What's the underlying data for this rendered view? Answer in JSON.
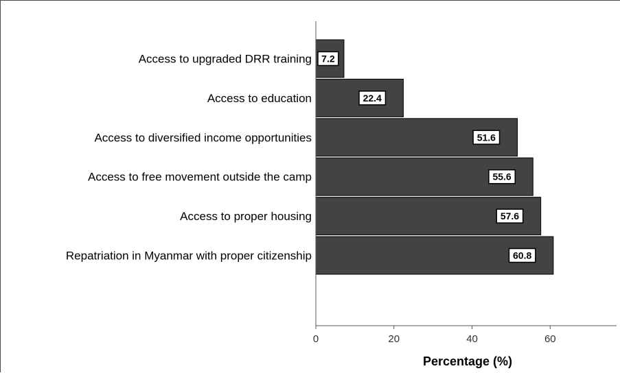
{
  "chart_data": {
    "type": "bar",
    "orientation": "horizontal",
    "categories": [
      "Access to upgraded DRR training",
      "Access to education",
      "Access to diversified income opportunities",
      "Access to free movement outside the camp",
      "Access to proper housing",
      "Repatriation in Myanmar with proper citizenship"
    ],
    "values": [
      7.2,
      22.4,
      51.6,
      55.6,
      57.6,
      60.8
    ],
    "data_labels": [
      "7.2",
      "22.4",
      "51.6",
      "55.6",
      "57.6",
      "60.8"
    ],
    "title": "",
    "xlabel": "Percentage (%)",
    "ylabel": "",
    "xlim": [
      0,
      77
    ],
    "xticks": [
      0,
      20,
      40,
      60
    ],
    "xtick_labels": [
      "0",
      "20",
      "40",
      "60"
    ],
    "grid": false,
    "legend": "none",
    "colors": {
      "bar_fill": "#434343",
      "bar_stroke": "#000000",
      "label_box": "#ffffff"
    }
  }
}
